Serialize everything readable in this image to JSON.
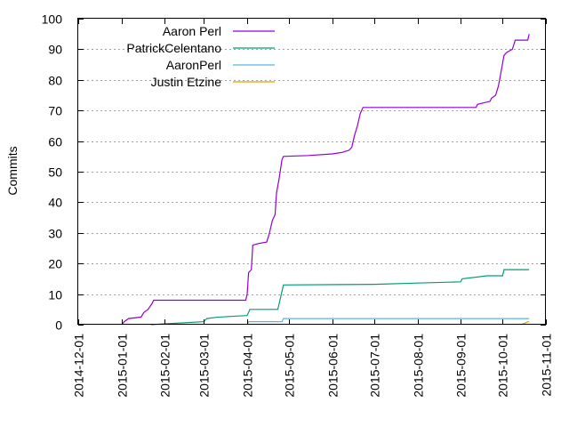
{
  "chart_data": {
    "type": "line",
    "title": "",
    "xlabel": "",
    "ylabel": "Commits",
    "ylim": [
      0,
      100
    ],
    "xlim": [
      "2014-12-01",
      "2015-11-01"
    ],
    "grid": "horizontal dotted",
    "legend_position": "top-left",
    "y_ticks": [
      "0",
      "10",
      "20",
      "30",
      "40",
      "50",
      "60",
      "70",
      "80",
      "90",
      "100"
    ],
    "x_ticks": [
      "2014-12-01",
      "2015-01-01",
      "2015-02-01",
      "2015-03-01",
      "2015-04-01",
      "2015-05-01",
      "2015-06-01",
      "2015-07-01",
      "2015-08-01",
      "2015-09-01",
      "2015-10-01",
      "2015-11-01"
    ],
    "series": [
      {
        "name": "Aaron Perl",
        "color": "#9400d3",
        "points": [
          [
            "2015-01-01",
            0
          ],
          [
            "2015-01-03",
            1
          ],
          [
            "2015-01-06",
            2
          ],
          [
            "2015-01-15",
            2.5
          ],
          [
            "2015-01-17",
            4
          ],
          [
            "2015-01-20",
            5
          ],
          [
            "2015-01-23",
            7
          ],
          [
            "2015-01-24",
            8
          ],
          [
            "2015-03-31",
            8
          ],
          [
            "2015-04-01",
            10
          ],
          [
            "2015-04-02",
            17
          ],
          [
            "2015-04-04",
            18
          ],
          [
            "2015-04-05",
            26
          ],
          [
            "2015-04-09",
            26.5
          ],
          [
            "2015-04-15",
            27
          ],
          [
            "2015-04-17",
            30
          ],
          [
            "2015-04-19",
            34
          ],
          [
            "2015-04-21",
            36
          ],
          [
            "2015-04-22",
            43
          ],
          [
            "2015-04-24",
            48
          ],
          [
            "2015-04-26",
            54
          ],
          [
            "2015-04-27",
            55
          ],
          [
            "2015-05-15",
            55.3
          ],
          [
            "2015-06-01",
            55.8
          ],
          [
            "2015-06-08",
            56.3
          ],
          [
            "2015-06-13",
            57
          ],
          [
            "2015-06-15",
            58
          ],
          [
            "2015-06-17",
            62
          ],
          [
            "2015-06-19",
            65
          ],
          [
            "2015-06-21",
            69
          ],
          [
            "2015-06-23",
            71
          ],
          [
            "2015-09-12",
            71
          ],
          [
            "2015-09-13",
            72
          ],
          [
            "2015-09-22",
            73
          ],
          [
            "2015-09-23",
            74
          ],
          [
            "2015-09-26",
            75
          ],
          [
            "2015-09-28",
            78
          ],
          [
            "2015-09-30",
            83
          ],
          [
            "2015-10-02",
            88
          ],
          [
            "2015-10-04",
            89
          ],
          [
            "2015-10-08",
            90
          ],
          [
            "2015-10-10",
            93
          ],
          [
            "2015-10-19",
            93
          ],
          [
            "2015-10-20",
            95
          ]
        ]
      },
      {
        "name": "PatrickCelentano",
        "color": "#009e73",
        "points": [
          [
            "2015-01-22",
            0
          ],
          [
            "2015-02-01",
            0.3
          ],
          [
            "2015-02-15",
            0.6
          ],
          [
            "2015-03-01",
            1
          ],
          [
            "2015-03-03",
            2
          ],
          [
            "2015-03-10",
            2.4
          ],
          [
            "2015-03-20",
            2.7
          ],
          [
            "2015-04-01",
            3
          ],
          [
            "2015-04-03",
            5
          ],
          [
            "2015-04-23",
            5
          ],
          [
            "2015-04-24",
            7
          ],
          [
            "2015-04-26",
            11
          ],
          [
            "2015-04-27",
            13
          ],
          [
            "2015-07-01",
            13.2
          ],
          [
            "2015-08-01",
            13.6
          ],
          [
            "2015-09-01",
            14
          ],
          [
            "2015-09-02",
            15
          ],
          [
            "2015-09-20",
            16
          ],
          [
            "2015-10-01",
            16
          ],
          [
            "2015-10-02",
            18
          ],
          [
            "2015-10-20",
            18
          ]
        ]
      },
      {
        "name": "AaronPerl",
        "color": "#56b4e9",
        "points": [
          [
            "2015-04-01",
            0
          ],
          [
            "2015-04-02",
            1
          ],
          [
            "2015-04-26",
            1
          ],
          [
            "2015-04-27",
            2
          ],
          [
            "2015-10-20",
            2
          ]
        ]
      },
      {
        "name": "Justin Etzine",
        "color": "#e69f00",
        "points": [
          [
            "2015-10-14",
            0
          ],
          [
            "2015-10-17",
            0.5
          ],
          [
            "2015-10-19",
            1
          ],
          [
            "2015-10-20",
            1
          ]
        ]
      }
    ]
  }
}
